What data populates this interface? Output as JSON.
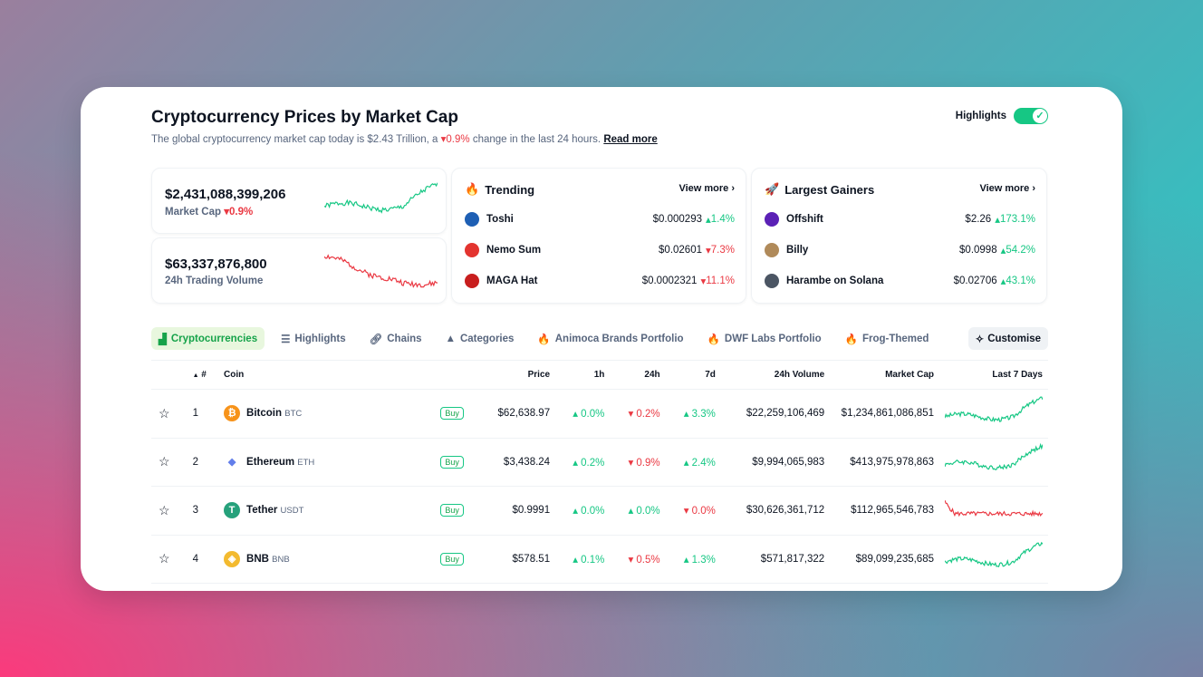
{
  "header": {
    "title": "Cryptocurrency Prices by Market Cap",
    "subtitle_prefix": "The global cryptocurrency market cap today is $2.43 Trillion, a",
    "subtitle_change": "0.9%",
    "subtitle_suffix": "change in the last 24 hours.",
    "read_more": "Read more",
    "highlights_label": "Highlights",
    "highlights_on": true
  },
  "stats": [
    {
      "value": "$2,431,088,399,206",
      "label": "Market Cap",
      "change": "0.9%",
      "direction": "down",
      "spark_color": "#16c784"
    },
    {
      "value": "$63,337,876,800",
      "label": "24h Trading Volume",
      "spark_color": "#ea3943"
    }
  ],
  "trending": {
    "title": "Trending",
    "view_more": "View more",
    "items": [
      {
        "name": "Toshi",
        "price": "$0.000293",
        "change": "1.4%",
        "direction": "up",
        "icon_color": "#1e5fb4"
      },
      {
        "name": "Nemo Sum",
        "price": "$0.02601",
        "change": "7.3%",
        "direction": "down",
        "icon_color": "#e3342f"
      },
      {
        "name": "MAGA Hat",
        "price": "$0.0002321",
        "change": "11.1%",
        "direction": "down",
        "icon_color": "#c81e1e"
      }
    ]
  },
  "gainers": {
    "title": "Largest Gainers",
    "view_more": "View more",
    "items": [
      {
        "name": "Offshift",
        "price": "$2.26",
        "change": "173.1%",
        "direction": "up",
        "icon_color": "#5b21b6"
      },
      {
        "name": "Billy",
        "price": "$0.0998",
        "change": "54.2%",
        "direction": "up",
        "icon_color": "#b08a5a"
      },
      {
        "name": "Harambe on Solana",
        "price": "$0.02706",
        "change": "43.1%",
        "direction": "up",
        "icon_color": "#4b5563"
      }
    ]
  },
  "tabs": [
    "Cryptocurrencies",
    "Highlights",
    "Chains",
    "Categories",
    "Animoca Brands Portfolio",
    "DWF Labs Portfolio",
    "Frog-Themed"
  ],
  "customise": "Customise",
  "table": {
    "headers": [
      "#",
      "Coin",
      "Price",
      "1h",
      "24h",
      "7d",
      "24h Volume",
      "Market Cap",
      "Last 7 Days"
    ],
    "buy_label": "Buy",
    "rows": [
      {
        "rank": "1",
        "name": "Bitcoin",
        "symbol": "BTC",
        "price": "$62,638.97",
        "h1": "0.0%",
        "h1_dir": "up",
        "h24": "0.2%",
        "h24_dir": "down",
        "d7": "3.3%",
        "d7_dir": "up",
        "volume": "$22,259,106,469",
        "mcap": "$1,234,861,086,851",
        "icon_color": "#f7931a",
        "icon": "₿",
        "spark_color": "#16c784"
      },
      {
        "rank": "2",
        "name": "Ethereum",
        "symbol": "ETH",
        "price": "$3,438.24",
        "h1": "0.2%",
        "h1_dir": "up",
        "h24": "0.9%",
        "h24_dir": "down",
        "d7": "2.4%",
        "d7_dir": "up",
        "volume": "$9,994,065,983",
        "mcap": "$413,975,978,863",
        "icon_color": "#ffffff",
        "icon": "◆",
        "spark_color": "#16c784"
      },
      {
        "rank": "3",
        "name": "Tether",
        "symbol": "USDT",
        "price": "$0.9991",
        "h1": "0.0%",
        "h1_dir": "up",
        "h24": "0.0%",
        "h24_dir": "up",
        "d7": "0.0%",
        "d7_dir": "down",
        "volume": "$30,626,361,712",
        "mcap": "$112,965,546,783",
        "icon_color": "#26a17b",
        "icon": "T",
        "spark_color": "#ea3943"
      },
      {
        "rank": "4",
        "name": "BNB",
        "symbol": "BNB",
        "price": "$578.51",
        "h1": "0.1%",
        "h1_dir": "up",
        "h24": "0.5%",
        "h24_dir": "down",
        "d7": "1.3%",
        "d7_dir": "up",
        "volume": "$571,817,322",
        "mcap": "$89,099,235,685",
        "icon_color": "#f3ba2f",
        "icon": "◈",
        "spark_color": "#16c784"
      }
    ]
  }
}
